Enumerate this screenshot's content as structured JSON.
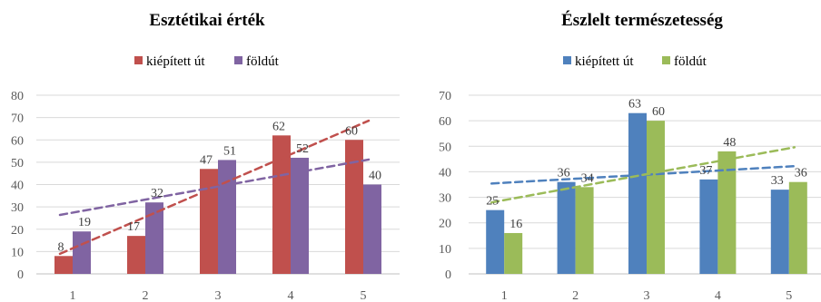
{
  "chart_data": [
    {
      "type": "bar",
      "title": "Esztétikai érték",
      "categories": [
        "1",
        "2",
        "3",
        "4",
        "5"
      ],
      "series": [
        {
          "name": "kiépített út",
          "values": [
            8,
            17,
            47,
            62,
            60
          ],
          "color": "#C0504D"
        },
        {
          "name": "földút",
          "values": [
            19,
            32,
            51,
            52,
            40
          ],
          "color": "#8064A2"
        }
      ],
      "ylim": [
        0,
        80
      ],
      "yticks": [
        "0",
        "10",
        "20",
        "30",
        "40",
        "50",
        "60",
        "70",
        "80"
      ],
      "trendlines": true,
      "grid": true,
      "legend": "top"
    },
    {
      "type": "bar",
      "title": "Észlelt természetesség",
      "categories": [
        "1",
        "2",
        "3",
        "4",
        "5"
      ],
      "series": [
        {
          "name": "kiépített út",
          "values": [
            25,
            36,
            63,
            37,
            33
          ],
          "color": "#4F81BD"
        },
        {
          "name": "földút",
          "values": [
            16,
            34,
            60,
            48,
            36
          ],
          "color": "#9BBB59"
        }
      ],
      "ylim": [
        0,
        70
      ],
      "yticks": [
        "0",
        "10",
        "20",
        "30",
        "40",
        "50",
        "60",
        "70"
      ],
      "trendlines": true,
      "grid": true,
      "legend": "top"
    }
  ]
}
